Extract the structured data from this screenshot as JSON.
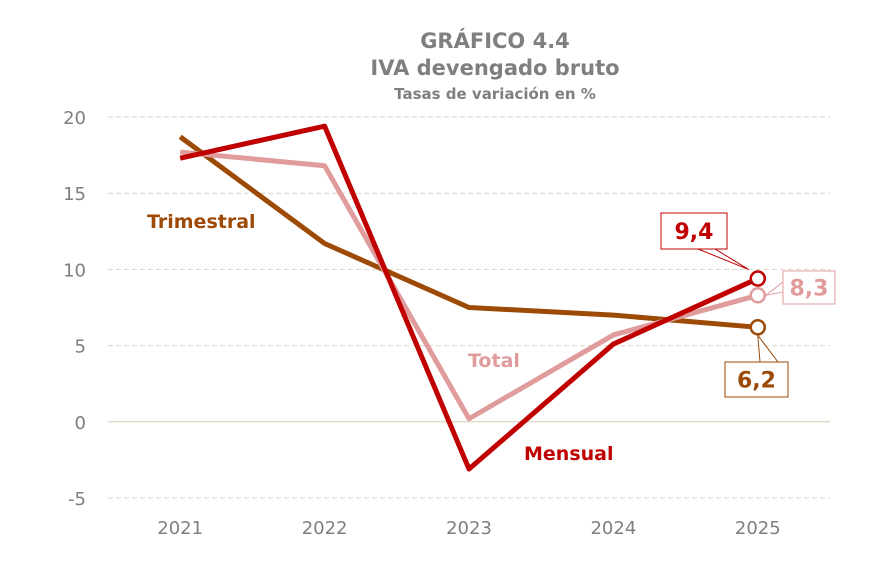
{
  "chart_data": {
    "type": "line",
    "title": "GRÁFICO 4.4",
    "subtitle": "IVA devengado bruto",
    "subtitle2": "Tasas de variación en %",
    "categories": [
      "2021",
      "2022",
      "2023",
      "2024",
      "2025"
    ],
    "ylim": [
      -5,
      20
    ],
    "yticks": [
      -5,
      0,
      5,
      10,
      15,
      20
    ],
    "grid": true,
    "series": [
      {
        "name": "Trimestral",
        "color": "#9C4A06",
        "values": [
          18.7,
          11.7,
          7.5,
          7.0,
          6.2
        ],
        "end_label": "6,2"
      },
      {
        "name": "Total",
        "color": "#E09C9C",
        "values": [
          17.7,
          16.8,
          0.2,
          5.7,
          8.3
        ],
        "end_label": "8,3"
      },
      {
        "name": "Mensual",
        "color": "#C00000",
        "values": [
          17.3,
          19.4,
          -3.1,
          5.1,
          9.4
        ],
        "end_label": "9,4"
      }
    ]
  }
}
